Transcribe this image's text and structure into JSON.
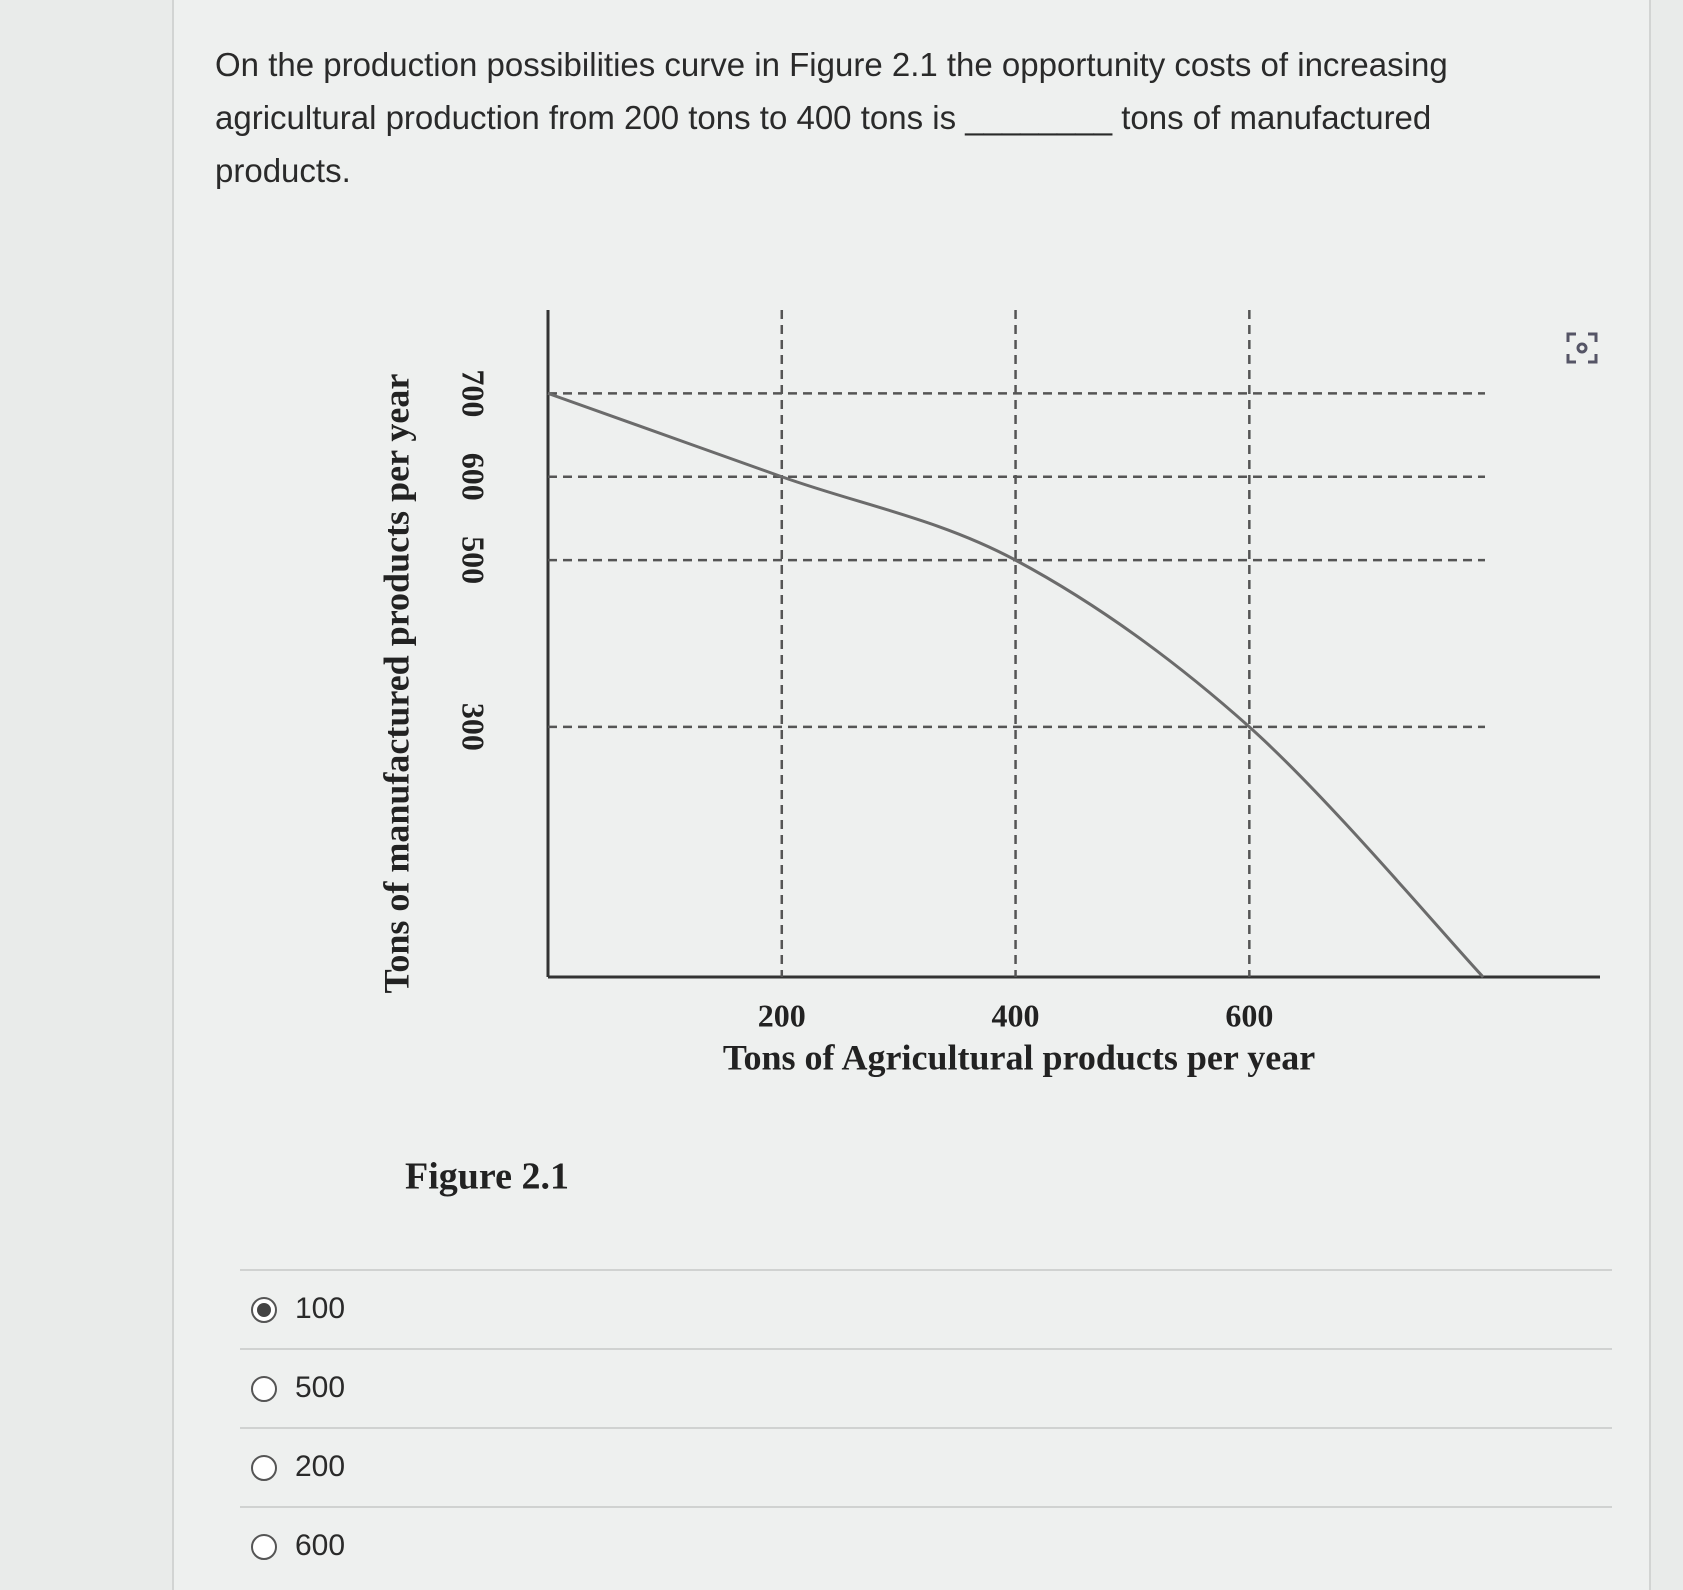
{
  "question": "On the production possibilities curve in Figure 2.1 the opportunity costs of increasing agricultural production from 200 tons to 400 tons is ________ tons of manufactured products.",
  "chart_data": {
    "type": "line",
    "x": [
      0,
      200,
      400,
      600,
      800
    ],
    "values": [
      700,
      600,
      500,
      300,
      0
    ],
    "color": "#6b6b6b",
    "xlim": [
      0,
      900
    ],
    "ylim": [
      0,
      800
    ],
    "xticks": [
      200,
      400,
      600
    ],
    "yticks": [
      300,
      500,
      600,
      700
    ],
    "xlabel": "Tons of Agricultural products per year",
    "ylabel": "Tons of manufactured products per year",
    "grid": true
  },
  "figure_caption": "Figure 2.1",
  "options": [
    "100",
    "500",
    "200",
    "600"
  ],
  "selected": 0
}
